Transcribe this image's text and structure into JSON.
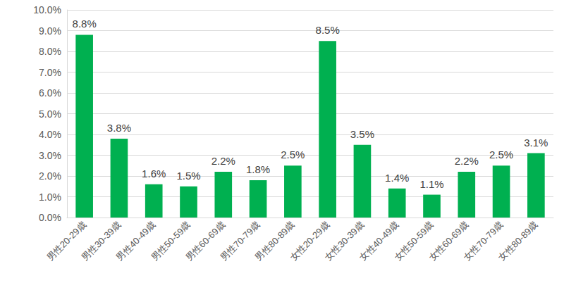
{
  "chart_data": {
    "type": "bar",
    "categories": [
      "男性20-29歳",
      "男性30-39歳",
      "男性40-49歳",
      "男性50-59歳",
      "男性60-69歳",
      "男性70-79歳",
      "男性80-89歳",
      "女性20-29歳",
      "女性30-39歳",
      "女性40-49歳",
      "女性50-59歳",
      "女性60-69歳",
      "女性70-79歳",
      "女性80-89歳"
    ],
    "values": [
      8.8,
      3.8,
      1.6,
      1.5,
      2.2,
      1.8,
      2.5,
      8.5,
      3.5,
      1.4,
      1.1,
      2.2,
      2.5,
      3.1
    ],
    "value_labels": [
      "8.8%",
      "3.8%",
      "1.6%",
      "1.5%",
      "2.2%",
      "1.8%",
      "2.5%",
      "8.5%",
      "3.5%",
      "1.4%",
      "1.1%",
      "2.2%",
      "2.5%",
      "3.1%"
    ],
    "data_labels": true,
    "color": "#00b050",
    "ylim": [
      0,
      10
    ],
    "yticks": [
      {
        "value": 0,
        "label": "0.0%"
      },
      {
        "value": 1,
        "label": "1.0%"
      },
      {
        "value": 2,
        "label": "2.0%"
      },
      {
        "value": 3,
        "label": "3.0%"
      },
      {
        "value": 4,
        "label": "4.0%"
      },
      {
        "value": 5,
        "label": "5.0%"
      },
      {
        "value": 6,
        "label": "6.0%"
      },
      {
        "value": 7,
        "label": "7.0%"
      },
      {
        "value": 8,
        "label": "8.0%"
      },
      {
        "value": 9,
        "label": "9.0%"
      },
      {
        "value": 10,
        "label": "10.0%"
      }
    ],
    "grid": true
  }
}
